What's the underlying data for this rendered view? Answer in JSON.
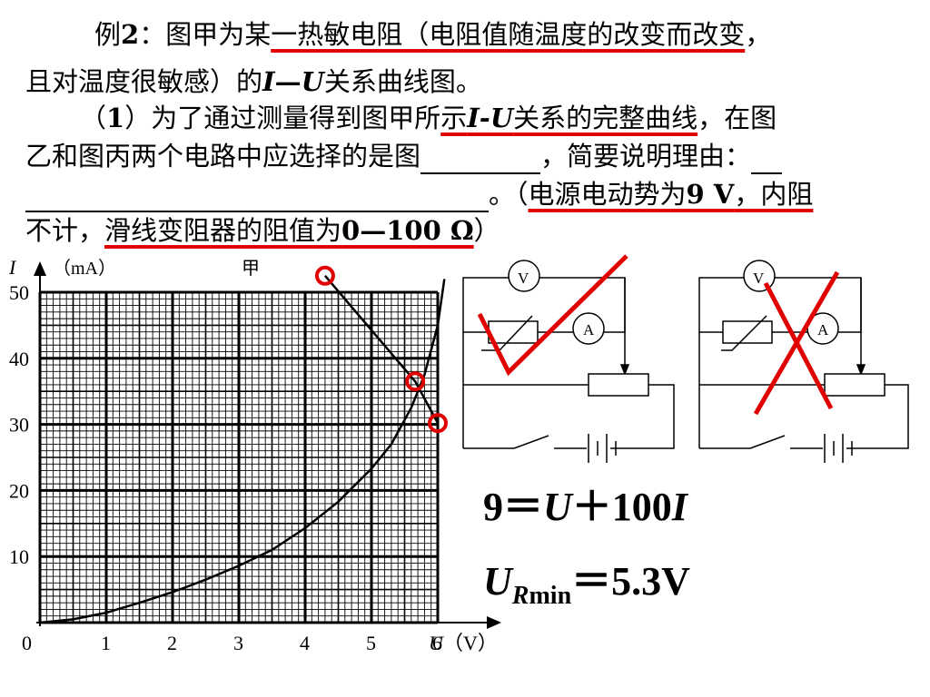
{
  "problem": {
    "line1_a": "例",
    "line1_b": "2",
    "line1_c": "：图甲为某",
    "line1_ul": "一热敏电阻（电阻值随温度的改变而改变",
    "line1_d": "，",
    "line2_a": "且对温度很敏感）的",
    "line2_i": "I",
    "line2_dash": "—",
    "line2_u": "U",
    "line2_b": "关系曲线图。",
    "line3_a": "（",
    "line3_num": "1",
    "line3_b": "）为了通过测量得到图甲所",
    "line3_ul_a": "示",
    "line3_ul_iu": "I-U",
    "line3_ul_b": "关系的完整曲线",
    "line3_c": "，在图",
    "line4_a": "乙和图丙两个电路中应选择的是图",
    "line4_b": "，简要说明理由：",
    "line5_a": "。（",
    "line5_ul": "电源电动势为",
    "line5_ul_b": "9 V",
    "line5_ul_c": "，内阻",
    "line6_a": "不计，",
    "line6_ul": "滑线变阻器的阻值为",
    "line6_ul_b": "0—100 Ω",
    "line6_b": "）"
  },
  "chart_data": {
    "type": "line",
    "title": "甲",
    "xlabel": "U（V）",
    "ylabel": "I （mA）",
    "x_axis_symbol": "U",
    "x_axis_unit": "（V）",
    "y_axis_symbol": "I",
    "y_axis_unit": "（mA）",
    "x_ticks": [
      "0",
      "1",
      "2",
      "3",
      "4",
      "5",
      "6"
    ],
    "y_ticks": [
      "10",
      "20",
      "30",
      "40",
      "50"
    ],
    "xlim": [
      0,
      6.2
    ],
    "ylim": [
      0,
      53
    ],
    "grid": true,
    "series": [
      {
        "points": [
          [
            0,
            0
          ],
          [
            0.5,
            0.5
          ],
          [
            1,
            1.5
          ],
          [
            1.5,
            3
          ],
          [
            2,
            4.6
          ],
          [
            2.5,
            6.5
          ],
          [
            3,
            8.6
          ],
          [
            3.5,
            11
          ],
          [
            4,
            14.3
          ],
          [
            4.5,
            18.3
          ],
          [
            5,
            23.3
          ],
          [
            5.3,
            27
          ],
          [
            5.6,
            32.5
          ],
          [
            5.8,
            37.5
          ],
          [
            6,
            45
          ],
          [
            6.1,
            52
          ]
        ]
      },
      {
        "points": [
          [
            4.3,
            52.5
          ],
          [
            5.66,
            36.5
          ],
          [
            6.0,
            30.2
          ]
        ]
      }
    ],
    "markers": [
      [
        4.3,
        52.5
      ],
      [
        5.66,
        36.5
      ],
      [
        6.0,
        30.2
      ]
    ]
  },
  "circuits": {
    "voltmeter_label": "V",
    "ammeter_label": "A"
  },
  "equations": {
    "eq1_a": "9＝",
    "eq1_u": "U",
    "eq1_b": "＋100",
    "eq1_i": "I",
    "eq2_u": "U",
    "eq2_sub_r": "R",
    "eq2_sub_min": "min",
    "eq2_val": "＝5.3V"
  },
  "colors": {
    "annotation": "#e00000",
    "ink": "#000000",
    "background": "#ffffff"
  }
}
